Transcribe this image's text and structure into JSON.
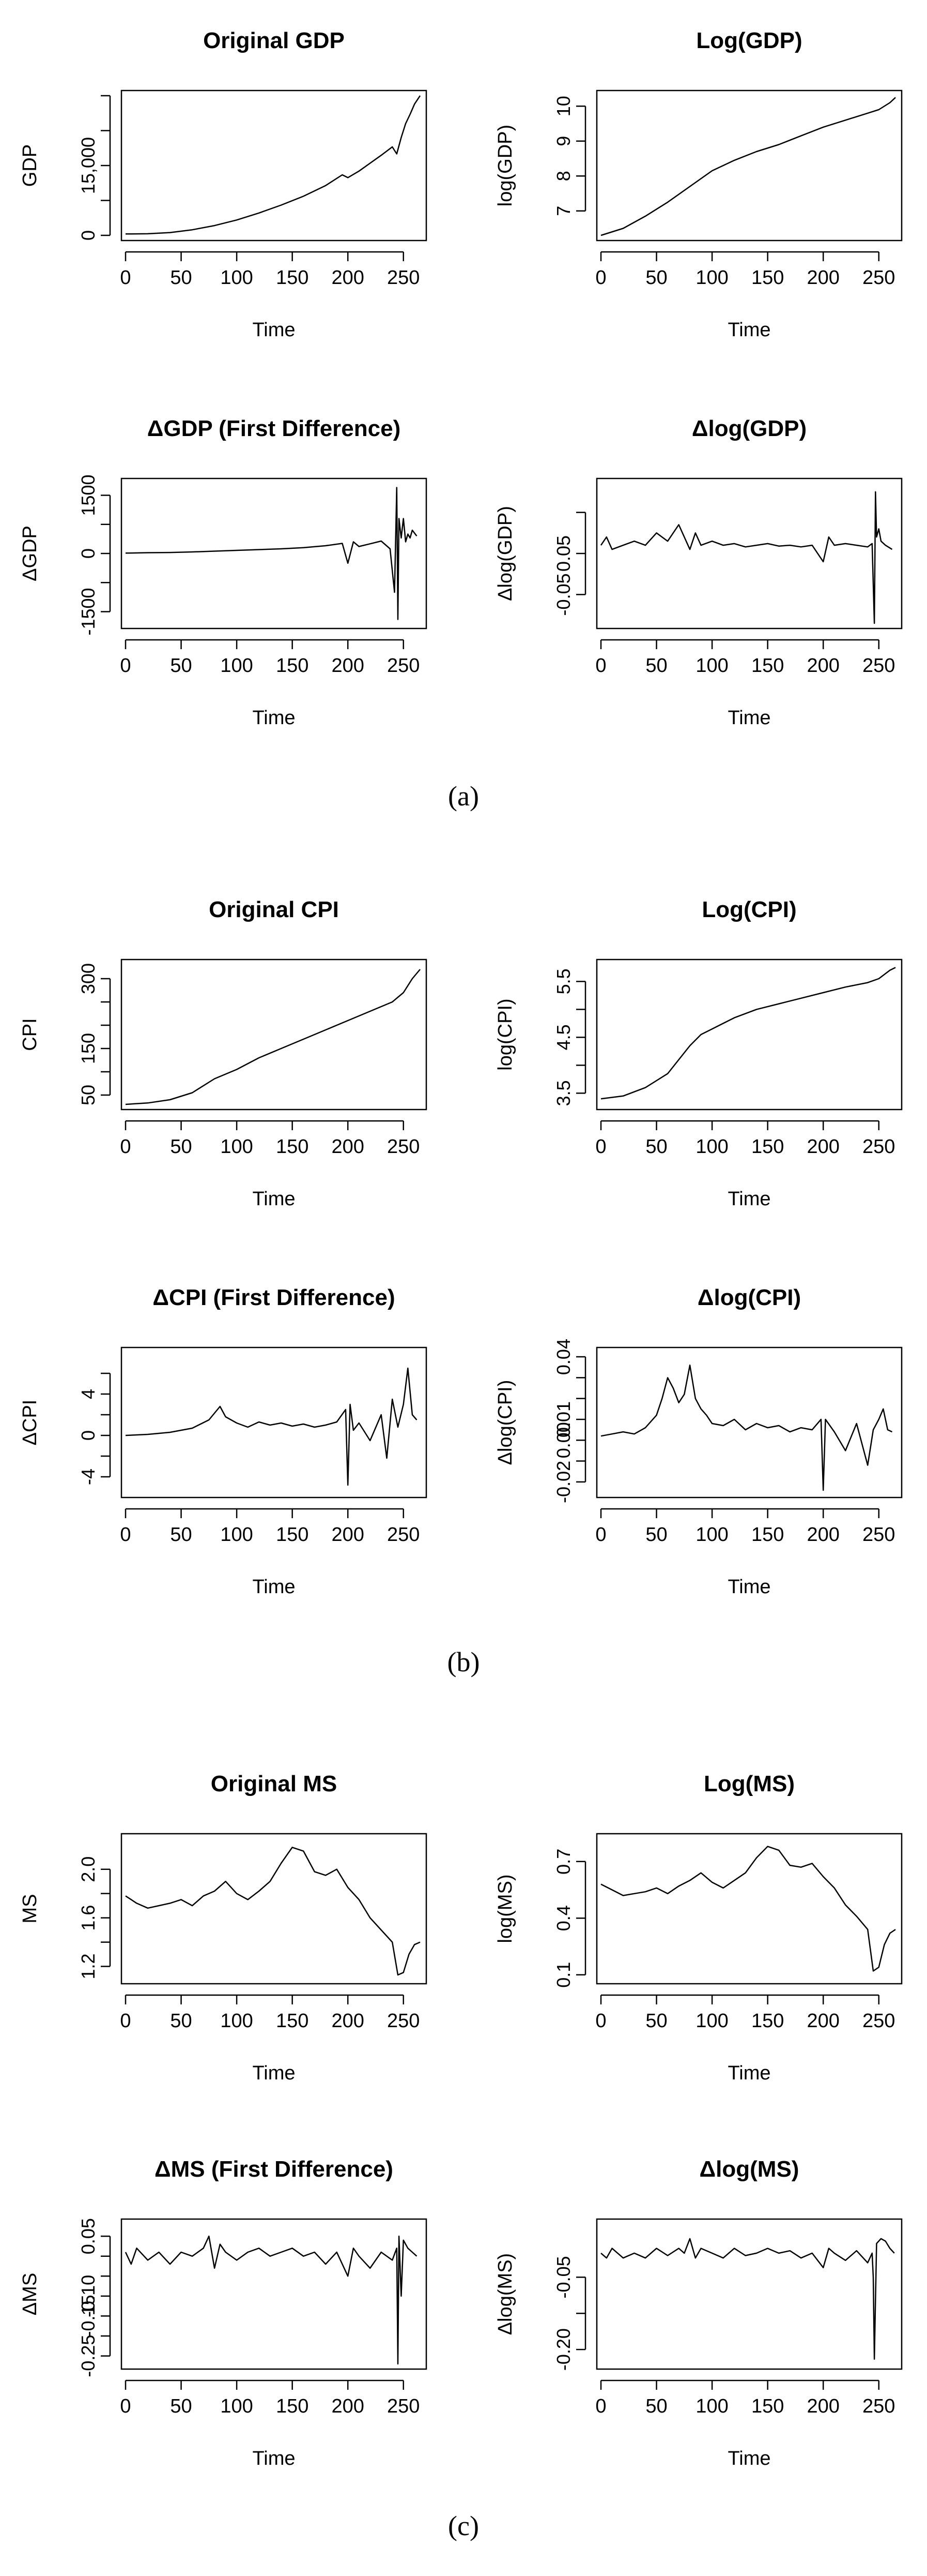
{
  "chart_data": [
    {
      "type": "line",
      "title": "Original GDP",
      "xlabel": "Time",
      "ylabel": "GDP",
      "xlim": [
        0,
        265
      ],
      "ylim": [
        0,
        30000
      ],
      "xticks": [
        0,
        50,
        100,
        150,
        200,
        250
      ],
      "yticks": [
        0,
        7500,
        15000,
        22500,
        30000
      ],
      "yticklabels": [
        "0",
        "",
        "15,000",
        "",
        ""
      ],
      "series": [
        {
          "name": "GDP",
          "x": [
            0,
            20,
            40,
            60,
            80,
            100,
            120,
            140,
            160,
            180,
            195,
            200,
            210,
            220,
            230,
            240,
            244,
            248,
            252,
            256,
            260,
            265
          ],
          "values": [
            300,
            350,
            600,
            1200,
            2100,
            3300,
            4800,
            6500,
            8400,
            10700,
            13000,
            12400,
            13800,
            15500,
            17200,
            19000,
            17500,
            21000,
            24000,
            26000,
            28200,
            30000
          ]
        }
      ]
    },
    {
      "type": "line",
      "title": "Log(GDP)",
      "xlabel": "Time",
      "ylabel": "log(GDP)",
      "xlim": [
        0,
        265
      ],
      "ylim": [
        6.3,
        10.3
      ],
      "xticks": [
        0,
        50,
        100,
        150,
        200,
        250
      ],
      "yticks": [
        7,
        8,
        9,
        10
      ],
      "yticklabels": [
        "7",
        "8",
        "9",
        "10"
      ],
      "series": [
        {
          "name": "log(GDP)",
          "x": [
            0,
            20,
            40,
            60,
            80,
            100,
            120,
            140,
            160,
            180,
            200,
            220,
            240,
            250,
            260,
            265
          ],
          "values": [
            6.3,
            6.5,
            6.85,
            7.25,
            7.7,
            8.15,
            8.45,
            8.7,
            8.9,
            9.15,
            9.4,
            9.6,
            9.8,
            9.9,
            10.1,
            10.25
          ]
        }
      ]
    },
    {
      "type": "line",
      "title": "ΔGDP (First Difference)",
      "xlabel": "Time",
      "ylabel": "ΔGDP",
      "xlim": [
        0,
        265
      ],
      "ylim": [
        -1800,
        1800
      ],
      "xticks": [
        0,
        50,
        100,
        150,
        200,
        250
      ],
      "yticks": [
        -1500,
        -750,
        0,
        750,
        1500
      ],
      "yticklabels": [
        "-1500",
        "",
        "0",
        "",
        "1500"
      ],
      "series": [
        {
          "name": "ΔGDP",
          "x": [
            0,
            20,
            40,
            60,
            80,
            100,
            120,
            140,
            160,
            180,
            195,
            200,
            205,
            210,
            220,
            230,
            238,
            242,
            244,
            245,
            246,
            248,
            250,
            252,
            254,
            256,
            258,
            262
          ],
          "values": [
            10,
            20,
            25,
            40,
            60,
            80,
            100,
            120,
            150,
            200,
            260,
            -250,
            300,
            180,
            250,
            320,
            120,
            -1000,
            1700,
            -1700,
            900,
            400,
            900,
            300,
            500,
            400,
            600,
            450
          ]
        }
      ]
    },
    {
      "type": "line",
      "title": "Δlog(GDP)",
      "xlabel": "Time",
      "ylabel": "Δlog(GDP)",
      "xlim": [
        0,
        265
      ],
      "ylim": [
        -0.085,
        0.085
      ],
      "xticks": [
        0,
        50,
        100,
        150,
        200,
        250
      ],
      "yticks": [
        -0.05,
        0,
        0.05
      ],
      "yticklabels": [
        "-0.05",
        "0.05"
      ],
      "series": [
        {
          "name": "Δlog(GDP)",
          "x": [
            0,
            5,
            10,
            20,
            30,
            40,
            50,
            60,
            70,
            75,
            80,
            85,
            90,
            100,
            110,
            120,
            130,
            140,
            150,
            160,
            170,
            180,
            190,
            200,
            205,
            210,
            220,
            230,
            240,
            244,
            246,
            247,
            248,
            250,
            252,
            256,
            262
          ],
          "values": [
            0.01,
            0.02,
            0.005,
            0.01,
            0.015,
            0.01,
            0.025,
            0.015,
            0.035,
            0.02,
            0.005,
            0.025,
            0.01,
            0.015,
            0.01,
            0.012,
            0.008,
            0.01,
            0.012,
            0.009,
            0.01,
            0.008,
            0.01,
            -0.01,
            0.02,
            0.01,
            0.012,
            0.01,
            0.008,
            0.012,
            -0.085,
            0.075,
            0.02,
            0.03,
            0.015,
            0.01,
            0.005
          ]
        }
      ]
    },
    {
      "type": "line",
      "title": "Original CPI",
      "xlabel": "Time",
      "ylabel": "CPI",
      "xlim": [
        0,
        265
      ],
      "ylim": [
        30,
        330
      ],
      "xticks": [
        0,
        50,
        100,
        150,
        200,
        250
      ],
      "yticks": [
        50,
        100,
        150,
        200,
        250,
        300
      ],
      "yticklabels": [
        "50",
        "",
        "150",
        "",
        "",
        "300"
      ],
      "series": [
        {
          "name": "CPI",
          "x": [
            0,
            20,
            40,
            60,
            80,
            100,
            120,
            140,
            160,
            180,
            200,
            220,
            240,
            250,
            258,
            265
          ],
          "values": [
            30,
            33,
            40,
            55,
            85,
            105,
            130,
            150,
            170,
            190,
            210,
            230,
            250,
            270,
            300,
            320
          ]
        }
      ]
    },
    {
      "type": "line",
      "title": "Log(CPI)",
      "xlabel": "Time",
      "ylabel": "log(CPI)",
      "xlim": [
        0,
        265
      ],
      "ylim": [
        3.3,
        5.8
      ],
      "xticks": [
        0,
        50,
        100,
        150,
        200,
        250
      ],
      "yticks": [
        3.5,
        4.0,
        4.5,
        5.0,
        5.5
      ],
      "yticklabels": [
        "3.5",
        "",
        "4.5",
        "",
        "5.5"
      ],
      "series": [
        {
          "name": "log(CPI)",
          "x": [
            0,
            20,
            40,
            60,
            80,
            90,
            100,
            120,
            140,
            160,
            180,
            200,
            220,
            240,
            250,
            260,
            265
          ],
          "values": [
            3.4,
            3.45,
            3.6,
            3.85,
            4.35,
            4.55,
            4.65,
            4.85,
            5.0,
            5.1,
            5.2,
            5.3,
            5.4,
            5.48,
            5.55,
            5.7,
            5.75
          ]
        }
      ]
    },
    {
      "type": "line",
      "title": "ΔCPI (First Difference)",
      "xlabel": "Time",
      "ylabel": "ΔCPI",
      "xlim": [
        0,
        265
      ],
      "ylim": [
        -5.5,
        8
      ],
      "xticks": [
        0,
        50,
        100,
        150,
        200,
        250
      ],
      "yticks": [
        -4,
        -2,
        0,
        2,
        4,
        6
      ],
      "yticklabels": [
        "-4",
        "",
        "0",
        "",
        "4",
        ""
      ],
      "series": [
        {
          "name": "ΔCPI",
          "x": [
            0,
            20,
            40,
            60,
            75,
            85,
            90,
            100,
            110,
            120,
            130,
            140,
            150,
            160,
            170,
            180,
            190,
            198,
            200,
            202,
            205,
            210,
            220,
            230,
            235,
            240,
            245,
            250,
            254,
            258,
            262
          ],
          "values": [
            0,
            0.1,
            0.3,
            0.7,
            1.5,
            2.8,
            1.8,
            1.2,
            0.8,
            1.3,
            1.0,
            1.2,
            0.9,
            1.1,
            0.8,
            1.0,
            1.3,
            2.5,
            -4.8,
            3.0,
            0.5,
            1.2,
            -0.5,
            2.0,
            -2.2,
            3.5,
            0.8,
            3.0,
            6.5,
            2.0,
            1.5
          ]
        }
      ]
    },
    {
      "type": "line",
      "title": "Δlog(CPI)",
      "xlabel": "Time",
      "ylabel": "Δlog(CPI)",
      "xlim": [
        0,
        265
      ],
      "ylim": [
        -0.025,
        0.042
      ],
      "xticks": [
        0,
        50,
        100,
        150,
        200,
        250
      ],
      "yticks": [
        -0.02,
        -0.01,
        0,
        0.01,
        0.02,
        0.03,
        0.04
      ],
      "yticklabels": [
        "-0.02",
        "",
        "0.00",
        "0.01",
        "",
        "",
        "0.04"
      ],
      "series": [
        {
          "name": "Δlog(CPI)",
          "x": [
            0,
            10,
            20,
            30,
            40,
            50,
            55,
            60,
            65,
            70,
            75,
            80,
            85,
            90,
            95,
            100,
            110,
            120,
            130,
            140,
            150,
            160,
            170,
            180,
            190,
            198,
            200,
            202,
            210,
            220,
            230,
            240,
            245,
            250,
            254,
            258,
            262
          ],
          "values": [
            0.002,
            0.003,
            0.004,
            0.003,
            0.006,
            0.012,
            0.02,
            0.03,
            0.025,
            0.018,
            0.022,
            0.036,
            0.02,
            0.015,
            0.012,
            0.008,
            0.007,
            0.01,
            0.005,
            0.008,
            0.006,
            0.007,
            0.004,
            0.006,
            0.005,
            0.01,
            -0.024,
            0.01,
            0.004,
            -0.005,
            0.008,
            -0.012,
            0.005,
            0.01,
            0.015,
            0.005,
            0.004
          ]
        }
      ]
    },
    {
      "type": "line",
      "title": "Original MS",
      "xlabel": "Time",
      "ylabel": "MS",
      "xlim": [
        0,
        265
      ],
      "ylim": [
        1.1,
        2.25
      ],
      "xticks": [
        0,
        50,
        100,
        150,
        200,
        250
      ],
      "yticks": [
        1.2,
        1.4,
        1.6,
        1.8,
        2.0
      ],
      "yticklabels": [
        "1.2",
        "",
        "1.6",
        "",
        "2.0"
      ],
      "series": [
        {
          "name": "MS",
          "x": [
            0,
            10,
            20,
            30,
            40,
            50,
            60,
            70,
            80,
            90,
            100,
            110,
            120,
            130,
            140,
            150,
            160,
            170,
            180,
            190,
            200,
            210,
            220,
            230,
            240,
            245,
            250,
            255,
            260,
            265
          ],
          "values": [
            1.78,
            1.72,
            1.68,
            1.7,
            1.72,
            1.75,
            1.7,
            1.78,
            1.82,
            1.9,
            1.8,
            1.75,
            1.82,
            1.9,
            2.05,
            2.18,
            2.15,
            1.98,
            1.95,
            2.0,
            1.85,
            1.75,
            1.6,
            1.5,
            1.4,
            1.13,
            1.15,
            1.3,
            1.38,
            1.4
          ]
        }
      ]
    },
    {
      "type": "line",
      "title": "Log(MS)",
      "xlabel": "Time",
      "ylabel": "log(MS)",
      "xlim": [
        0,
        265
      ],
      "ylim": [
        0.08,
        0.82
      ],
      "xticks": [
        0,
        50,
        100,
        150,
        200,
        250
      ],
      "yticks": [
        0.1,
        0.4,
        0.7
      ],
      "yticklabels": [
        "0.1",
        "0.4",
        "0.7"
      ],
      "series": [
        {
          "name": "log(MS)",
          "x": [
            0,
            10,
            20,
            30,
            40,
            50,
            60,
            70,
            80,
            90,
            100,
            110,
            120,
            130,
            140,
            150,
            160,
            170,
            180,
            190,
            200,
            210,
            220,
            230,
            240,
            245,
            250,
            255,
            260,
            265
          ],
          "values": [
            0.58,
            0.55,
            0.52,
            0.53,
            0.54,
            0.56,
            0.53,
            0.57,
            0.6,
            0.64,
            0.59,
            0.56,
            0.6,
            0.64,
            0.72,
            0.78,
            0.76,
            0.68,
            0.67,
            0.69,
            0.62,
            0.56,
            0.47,
            0.41,
            0.34,
            0.12,
            0.14,
            0.26,
            0.32,
            0.34
          ]
        }
      ]
    },
    {
      "type": "line",
      "title": "ΔMS (First Difference)",
      "xlabel": "Time",
      "ylabel": "ΔMS",
      "xlim": [
        0,
        265
      ],
      "ylim": [
        -0.27,
        0.08
      ],
      "xticks": [
        0,
        50,
        100,
        150,
        200,
        250
      ],
      "yticks": [
        -0.25,
        -0.2,
        -0.15,
        -0.1,
        -0.05,
        0,
        0.05
      ],
      "yticklabels": [
        "-0.25",
        "",
        "-0.15",
        "-0.10",
        "",
        "",
        "0.05"
      ],
      "series": [
        {
          "name": "ΔMS",
          "x": [
            0,
            5,
            10,
            20,
            30,
            40,
            50,
            60,
            70,
            75,
            80,
            85,
            90,
            100,
            110,
            120,
            130,
            140,
            150,
            160,
            170,
            180,
            190,
            200,
            205,
            210,
            220,
            230,
            240,
            244,
            245,
            246,
            248,
            250,
            254,
            258,
            262
          ],
          "values": [
            0.01,
            -0.02,
            0.02,
            -0.01,
            0.01,
            -0.02,
            0.01,
            0.0,
            0.02,
            0.05,
            -0.03,
            0.03,
            0.01,
            -0.01,
            0.01,
            0.02,
            0.0,
            0.01,
            0.02,
            0.0,
            0.01,
            -0.02,
            0.01,
            -0.05,
            0.02,
            0.0,
            -0.03,
            0.01,
            -0.01,
            0.02,
            -0.27,
            0.05,
            -0.1,
            0.04,
            0.02,
            0.01,
            0.0
          ]
        }
      ]
    },
    {
      "type": "line",
      "title": "Δlog(MS)",
      "xlabel": "Time",
      "ylabel": "Δlog(MS)",
      "xlim": [
        0,
        265
      ],
      "ylim": [
        -0.23,
        0.06
      ],
      "xticks": [
        0,
        50,
        100,
        150,
        200,
        250
      ],
      "yticks": [
        -0.2,
        -0.125,
        -0.05
      ],
      "yticklabels": [
        "-0.20",
        "",
        "-0.05"
      ],
      "series": [
        {
          "name": "Δlog(MS)",
          "x": [
            0,
            5,
            10,
            20,
            30,
            40,
            50,
            60,
            70,
            75,
            80,
            85,
            90,
            100,
            110,
            120,
            130,
            140,
            150,
            160,
            170,
            180,
            190,
            200,
            205,
            210,
            220,
            230,
            240,
            244,
            245,
            246,
            248,
            252,
            256,
            260,
            264
          ],
          "values": [
            0.0,
            -0.01,
            0.01,
            -0.01,
            0.0,
            -0.01,
            0.01,
            -0.005,
            0.01,
            0.0,
            0.03,
            -0.01,
            0.01,
            0.0,
            -0.01,
            0.01,
            -0.005,
            0.0,
            0.01,
            0.0,
            0.005,
            -0.01,
            0.0,
            -0.03,
            0.01,
            0.0,
            -0.015,
            0.005,
            -0.02,
            0.0,
            -0.05,
            -0.22,
            0.02,
            0.03,
            0.025,
            0.01,
            0.0
          ]
        }
      ]
    }
  ],
  "captions": [
    "(a)",
    "(b)",
    "(c)"
  ]
}
